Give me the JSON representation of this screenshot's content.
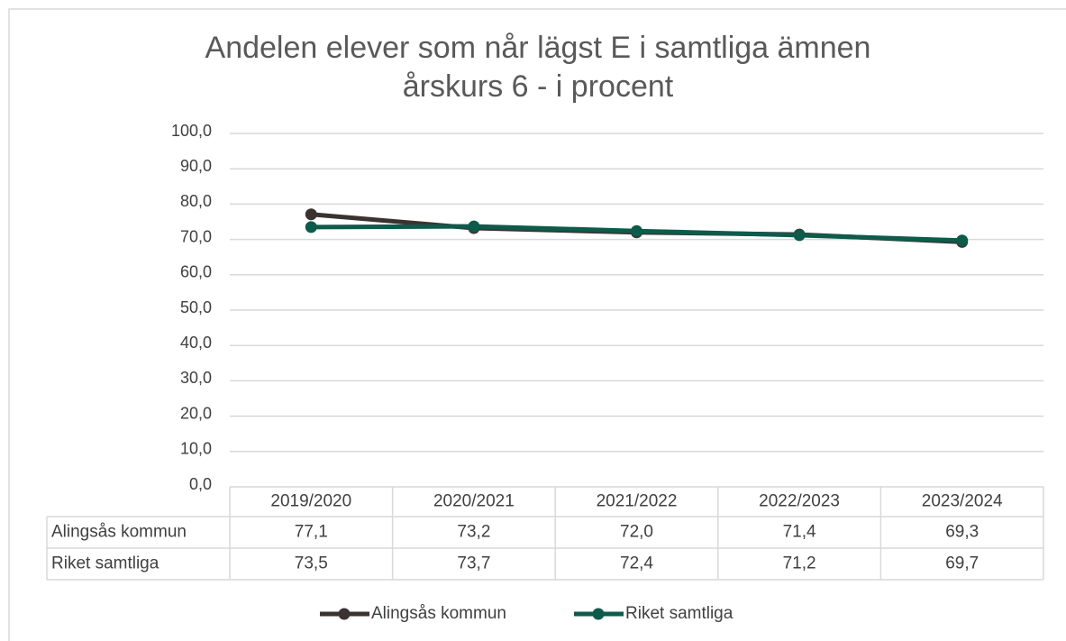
{
  "chart_data": {
    "type": "line",
    "title": [
      "Andelen elever som når lägst E i samtliga ämnen",
      "årskurs 6 - i procent"
    ],
    "categories": [
      "2019/2020",
      "2020/2021",
      "2021/2022",
      "2022/2023",
      "2023/2024"
    ],
    "series": [
      {
        "name": "Alingsås kommun",
        "color": "#3b3331",
        "values": [
          77.1,
          73.2,
          72.0,
          71.4,
          69.3
        ],
        "value_labels": [
          "77,1",
          "73,2",
          "72,0",
          "71,4",
          "69,3"
        ]
      },
      {
        "name": "Riket samtliga",
        "color": "#0d5b4b",
        "values": [
          73.5,
          73.7,
          72.4,
          71.2,
          69.7
        ],
        "value_labels": [
          "73,5",
          "73,7",
          "72,4",
          "71,2",
          "69,7"
        ]
      }
    ],
    "ylim": [
      0,
      100
    ],
    "yticks": [
      {
        "value": 0,
        "label": "0,0"
      },
      {
        "value": 10,
        "label": "10,0"
      },
      {
        "value": 20,
        "label": "20,0"
      },
      {
        "value": 30,
        "label": "30,0"
      },
      {
        "value": 40,
        "label": "40,0"
      },
      {
        "value": 50,
        "label": "50,0"
      },
      {
        "value": 60,
        "label": "60,0"
      },
      {
        "value": 70,
        "label": "70,0"
      },
      {
        "value": 80,
        "label": "80,0"
      },
      {
        "value": 90,
        "label": "90,0"
      },
      {
        "value": 100,
        "label": "100,0"
      }
    ],
    "grid": true,
    "legend": "bottom"
  }
}
